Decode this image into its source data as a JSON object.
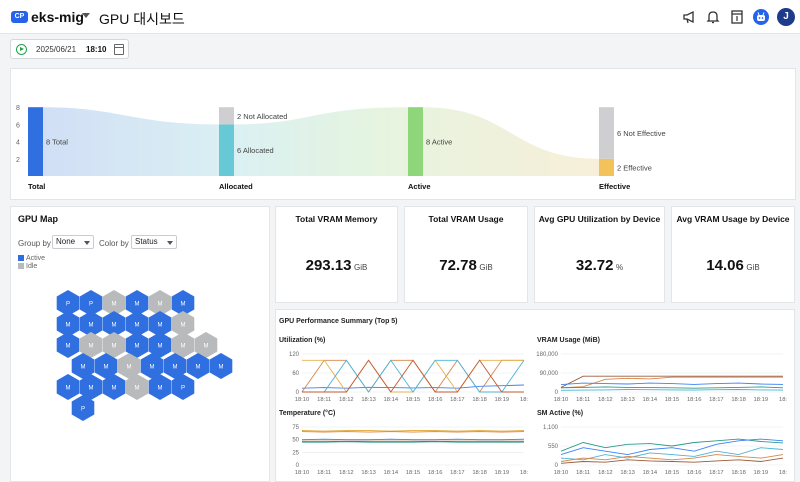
{
  "header": {
    "badge": "CP",
    "cluster": "eks-mig",
    "title": "GPU 대시보드"
  },
  "time_control": {
    "date": "2025/06/21",
    "time": "18:10"
  },
  "flow": {
    "y_ticks": [
      "8",
      "6",
      "4",
      "2"
    ],
    "stages": [
      {
        "label": "Total",
        "segments": [
          {
            "text": "8 Total",
            "value": 8,
            "color": "#2f6fe0"
          }
        ]
      },
      {
        "label": "Allocated",
        "segments": [
          {
            "text": "6 Allocated",
            "value": 6,
            "color": "#67c8d6"
          },
          {
            "text": "2 Not Allocated",
            "value": 2,
            "color": "#cfcfd1"
          }
        ]
      },
      {
        "label": "Active",
        "segments": [
          {
            "text": "8 Active",
            "value": 8,
            "color": "#8fd67a"
          }
        ]
      },
      {
        "label": "Effective",
        "segments": [
          {
            "text": "2 Effective",
            "value": 2,
            "color": "#f4c25a"
          },
          {
            "text": "6 Not Effective",
            "value": 6,
            "color": "#cfcfd1"
          }
        ]
      }
    ]
  },
  "gpu_map": {
    "title": "GPU Map",
    "group_by_label": "Group by",
    "group_by_value": "None",
    "color_by_label": "Color by",
    "color_by_value": "Status",
    "legend": [
      {
        "label": "Active",
        "color": "#2f6fe0"
      },
      {
        "label": "Idle",
        "color": "#b9babc"
      }
    ],
    "rows": [
      [
        {
          "t": "P",
          "s": "a"
        },
        {
          "t": "P",
          "s": "a"
        },
        {
          "t": "M",
          "s": "i"
        },
        {
          "t": "M",
          "s": "a"
        },
        {
          "t": "M",
          "s": "i"
        },
        {
          "t": "M",
          "s": "a"
        }
      ],
      [
        {
          "t": "M",
          "s": "a"
        },
        {
          "t": "M",
          "s": "a"
        },
        {
          "t": "M",
          "s": "a"
        },
        {
          "t": "M",
          "s": "a"
        },
        {
          "t": "M",
          "s": "a"
        },
        {
          "t": "M",
          "s": "i"
        }
      ],
      [
        {
          "t": "M",
          "s": "a"
        },
        {
          "t": "M",
          "s": "i"
        },
        {
          "t": "M",
          "s": "i"
        },
        {
          "t": "M",
          "s": "a"
        },
        {
          "t": "M",
          "s": "a"
        },
        {
          "t": "M",
          "s": "i"
        },
        {
          "t": "M",
          "s": "i"
        }
      ],
      [
        {
          "t": "M",
          "s": "a"
        },
        {
          "t": "M",
          "s": "a"
        },
        {
          "t": "M",
          "s": "i"
        },
        {
          "t": "M",
          "s": "a"
        },
        {
          "t": "M",
          "s": "a"
        },
        {
          "t": "M",
          "s": "a"
        },
        {
          "t": "M",
          "s": "a"
        }
      ],
      [
        {
          "t": "M",
          "s": "a"
        },
        {
          "t": "M",
          "s": "a"
        },
        {
          "t": "M",
          "s": "a"
        },
        {
          "t": "M",
          "s": "i"
        },
        {
          "t": "M",
          "s": "a"
        },
        {
          "t": "P",
          "s": "a"
        }
      ],
      [
        {
          "t": "P",
          "s": "a"
        }
      ]
    ]
  },
  "kpis": [
    {
      "title": "Total VRAM Memory",
      "value": "293.13",
      "unit": "GiB"
    },
    {
      "title": "Total VRAM Usage",
      "value": "72.78",
      "unit": "GiB"
    },
    {
      "title": "Avg GPU Utilization by Device",
      "value": "32.72",
      "unit": "%"
    },
    {
      "title": "Avg VRAM Usage by Device",
      "value": "14.06",
      "unit": "GiB"
    }
  ],
  "perf": {
    "title": "GPU Performance Summary (Top 5)",
    "times": [
      "18:10",
      "18:11",
      "18:12",
      "18:13",
      "18:14",
      "18:15",
      "18:16",
      "18:17",
      "18:18",
      "18:19",
      "18:"
    ],
    "charts": [
      {
        "title": "Utilization (%)",
        "y_ticks": [
          "120",
          "60",
          "0"
        ],
        "ymax": 120,
        "series": [
          {
            "color": "#3b82f6",
            "values": [
              12,
              14,
              12,
              15,
              14,
              13,
              14,
              12,
              18,
              20,
              22
            ]
          },
          {
            "color": "#d6864a",
            "values": [
              0,
              100,
              100,
              0,
              100,
              100,
              0,
              100,
              0,
              100,
              100
            ]
          },
          {
            "color": "#e6b04a",
            "values": [
              100,
              100,
              0,
              100,
              0,
              0,
              100,
              0,
              100,
              100,
              100
            ]
          },
          {
            "color": "#4bb3d6",
            "values": [
              0,
              0,
              100,
              0,
              100,
              0,
              100,
              100,
              0,
              0,
              100
            ]
          },
          {
            "color": "#c4572f",
            "values": [
              0,
              0,
              0,
              100,
              0,
              100,
              0,
              0,
              100,
              0,
              0
            ]
          }
        ]
      },
      {
        "title": "VRAM Usage (MiB)",
        "y_ticks": [
          "180,000",
          "90,000",
          "0"
        ],
        "ymax": 180000,
        "series": [
          {
            "color": "#d6864a",
            "values": [
              20000,
              25000,
              60000,
              65000,
              62000,
              70000,
              70000,
              70000,
              70000,
              70000,
              70000
            ]
          },
          {
            "color": "#9a5a3a",
            "values": [
              22000,
              75000,
              75000,
              75000,
              75000,
              75000,
              75000,
              75000,
              75000,
              75000,
              75000
            ]
          },
          {
            "color": "#3b82f6",
            "values": [
              35000,
              42000,
              40000,
              38000,
              42000,
              40000,
              36000,
              40000,
              42000,
              38000,
              36000
            ]
          },
          {
            "color": "#2c9a8c",
            "values": [
              20000,
              22000,
              24000,
              22000,
              21000,
              20000,
              18000,
              20000,
              22000,
              24000,
              20000
            ]
          },
          {
            "color": "#4bb3d6",
            "values": [
              8000,
              9000,
              10000,
              12000,
              11000,
              10000,
              9000,
              11000,
              12000,
              10000,
              9000
            ]
          }
        ]
      },
      {
        "title": "Temperature (°C)",
        "y_ticks": [
          "75",
          "50",
          "25",
          "0"
        ],
        "ymax": 75,
        "series": [
          {
            "color": "#e6b04a",
            "values": [
              68,
              67,
              68,
              68,
              67,
              68,
              68,
              67,
              68,
              67,
              68
            ]
          },
          {
            "color": "#d6864a",
            "values": [
              66,
              65,
              66,
              65,
              66,
              65,
              66,
              65,
              66,
              65,
              66
            ]
          },
          {
            "color": "#3b82f6",
            "values": [
              50,
              51,
              50,
              50,
              51,
              50,
              50,
              51,
              50,
              50,
              51
            ]
          },
          {
            "color": "#9a5a3a",
            "values": [
              47,
              47,
              47,
              47,
              47,
              47,
              47,
              47,
              47,
              47,
              47
            ]
          },
          {
            "color": "#2c9a8c",
            "values": [
              45,
              45,
              46,
              45,
              45,
              45,
              46,
              45,
              45,
              45,
              45
            ]
          }
        ]
      },
      {
        "title": "SM Active (%)",
        "y_ticks": [
          "1,100",
          "550",
          "0"
        ],
        "ymax": 1100,
        "series": [
          {
            "color": "#2c9a8c",
            "values": [
              400,
              650,
              500,
              600,
              620,
              550,
              650,
              700,
              750,
              680,
              640
            ]
          },
          {
            "color": "#3b82f6",
            "values": [
              300,
              500,
              400,
              300,
              450,
              500,
              400,
              600,
              700,
              750,
              700
            ]
          },
          {
            "color": "#4bb3d6",
            "values": [
              200,
              150,
              300,
              200,
              350,
              300,
              250,
              400,
              300,
              500,
              450
            ]
          },
          {
            "color": "#d6864a",
            "values": [
              100,
              200,
              150,
              250,
              200,
              150,
              200,
              300,
              250,
              200,
              300
            ]
          },
          {
            "color": "#9a5a3a",
            "values": [
              50,
              100,
              80,
              150,
              120,
              100,
              80,
              120,
              150,
              100,
              200
            ]
          }
        ]
      }
    ]
  }
}
